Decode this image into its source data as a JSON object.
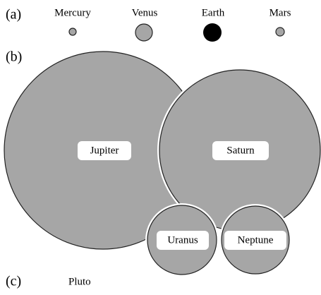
{
  "panels": {
    "a": {
      "label": "(a)",
      "planets": [
        "Mercury",
        "Venus",
        "Earth",
        "Mars"
      ]
    },
    "b": {
      "label": "(b)",
      "planets": [
        "Jupiter",
        "Saturn",
        "Uranus",
        "Neptune"
      ]
    },
    "c": {
      "label": "(c)",
      "planets": [
        "Pluto"
      ]
    }
  }
}
